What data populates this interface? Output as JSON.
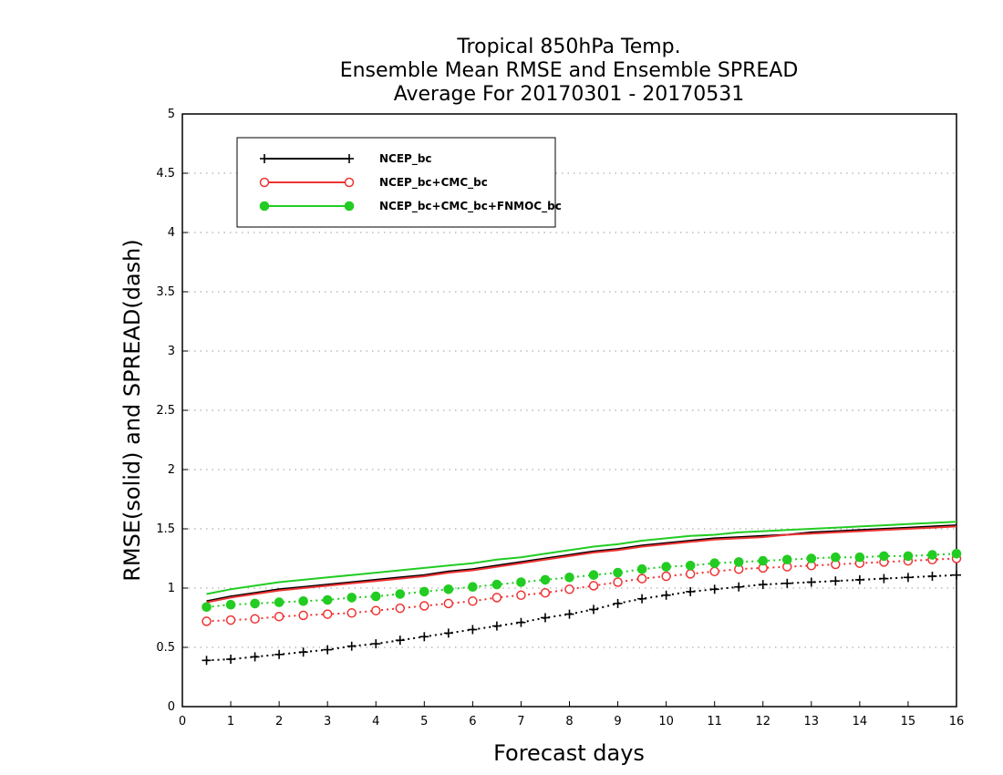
{
  "chart_data": {
    "type": "line",
    "title_lines": [
      "Tropical 850hPa Temp.",
      "Ensemble Mean RMSE and Ensemble SPREAD",
      "Average For 20170301 - 20170531"
    ],
    "xlabel": "Forecast days",
    "ylabel": "RMSE(solid) and SPREAD(dash)",
    "xlim": [
      0,
      16
    ],
    "ylim": [
      0,
      5
    ],
    "xticks": [
      0,
      1,
      2,
      3,
      4,
      5,
      6,
      7,
      8,
      9,
      10,
      11,
      12,
      13,
      14,
      15,
      16
    ],
    "yticks": [
      0,
      0.5,
      1,
      1.5,
      2,
      2.5,
      3,
      3.5,
      4,
      4.5,
      5
    ],
    "ytick_labels": [
      "0",
      "0.5",
      "1",
      "1.5",
      "2",
      "2.5",
      "3",
      "3.5",
      "4",
      "4.5",
      "5"
    ],
    "grid": true,
    "legend_position": "top-left",
    "x": [
      0.5,
      1,
      1.5,
      2,
      2.5,
      3,
      3.5,
      4,
      4.5,
      5,
      5.5,
      6,
      6.5,
      7,
      7.5,
      8,
      8.5,
      9,
      9.5,
      10,
      10.5,
      11,
      11.5,
      12,
      12.5,
      13,
      13.5,
      14,
      14.5,
      15,
      15.5,
      16
    ],
    "series": [
      {
        "name": "NCEP_bc",
        "color": "#000000",
        "marker": "plus",
        "rmse": [
          0.89,
          0.93,
          0.96,
          0.99,
          1.01,
          1.03,
          1.05,
          1.07,
          1.09,
          1.11,
          1.14,
          1.16,
          1.19,
          1.22,
          1.25,
          1.28,
          1.31,
          1.33,
          1.36,
          1.38,
          1.4,
          1.42,
          1.43,
          1.44,
          1.45,
          1.47,
          1.48,
          1.49,
          1.5,
          1.51,
          1.52,
          1.53
        ],
        "spread": [
          0.39,
          0.4,
          0.42,
          0.44,
          0.46,
          0.48,
          0.51,
          0.53,
          0.56,
          0.59,
          0.62,
          0.65,
          0.68,
          0.71,
          0.75,
          0.78,
          0.82,
          0.87,
          0.91,
          0.94,
          0.97,
          0.99,
          1.01,
          1.03,
          1.04,
          1.05,
          1.06,
          1.07,
          1.08,
          1.09,
          1.1,
          1.11
        ]
      },
      {
        "name": "NCEP_bc+CMC_bc",
        "color": "#ee3333",
        "marker": "open-circle",
        "rmse": [
          0.88,
          0.92,
          0.95,
          0.98,
          1.0,
          1.02,
          1.04,
          1.06,
          1.08,
          1.1,
          1.13,
          1.15,
          1.18,
          1.21,
          1.24,
          1.27,
          1.3,
          1.32,
          1.35,
          1.37,
          1.39,
          1.41,
          1.42,
          1.43,
          1.45,
          1.46,
          1.47,
          1.48,
          1.49,
          1.5,
          1.51,
          1.52
        ],
        "spread": [
          0.72,
          0.73,
          0.74,
          0.76,
          0.77,
          0.78,
          0.79,
          0.81,
          0.83,
          0.85,
          0.87,
          0.89,
          0.92,
          0.94,
          0.96,
          0.99,
          1.02,
          1.05,
          1.08,
          1.1,
          1.12,
          1.14,
          1.16,
          1.17,
          1.18,
          1.19,
          1.2,
          1.21,
          1.22,
          1.23,
          1.24,
          1.25
        ]
      },
      {
        "name": "NCEP_bc+CMC_bc+FNMOC_bc",
        "color": "#22cc22",
        "marker": "filled-circle",
        "rmse": [
          0.95,
          0.99,
          1.02,
          1.05,
          1.07,
          1.09,
          1.11,
          1.13,
          1.15,
          1.17,
          1.19,
          1.21,
          1.24,
          1.26,
          1.29,
          1.32,
          1.35,
          1.37,
          1.4,
          1.42,
          1.44,
          1.45,
          1.47,
          1.48,
          1.49,
          1.5,
          1.51,
          1.52,
          1.53,
          1.54,
          1.55,
          1.56
        ],
        "spread": [
          0.84,
          0.86,
          0.87,
          0.88,
          0.89,
          0.9,
          0.92,
          0.93,
          0.95,
          0.97,
          0.99,
          1.01,
          1.03,
          1.05,
          1.07,
          1.09,
          1.11,
          1.13,
          1.16,
          1.18,
          1.19,
          1.21,
          1.22,
          1.23,
          1.24,
          1.25,
          1.26,
          1.26,
          1.27,
          1.27,
          1.28,
          1.29
        ]
      }
    ]
  }
}
